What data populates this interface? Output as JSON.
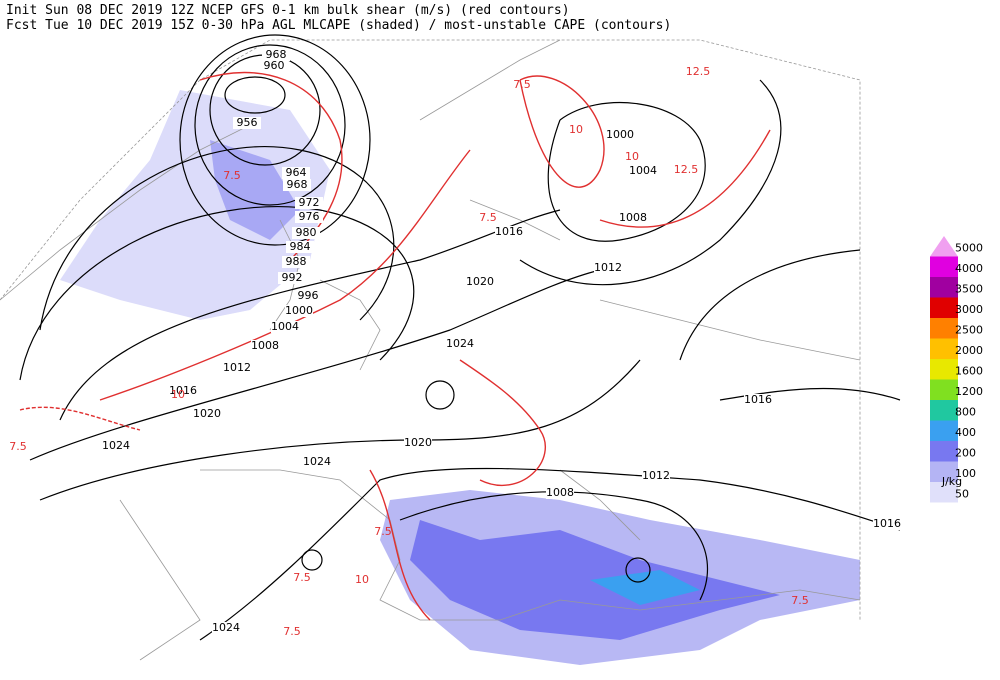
{
  "header": {
    "line1": "Init  Sun 08 DEC 2019 12Z  NCEP GFS 0-1 km bulk shear (m/s) (red contours)",
    "line2": "Fcst Tue 10 DEC 2019 15Z  0-30 hPa AGL MLCAPE (shaded) / most-unstable CAPE (contours)"
  },
  "legend": {
    "unit": "J/kg",
    "levels": [
      {
        "label": "5000",
        "color": "#f0a0f0"
      },
      {
        "label": "4000",
        "color": "#e000e0"
      },
      {
        "label": "3500",
        "color": "#a000a0"
      },
      {
        "label": "3000",
        "color": "#e00000"
      },
      {
        "label": "2500",
        "color": "#ff8000"
      },
      {
        "label": "2000",
        "color": "#ffc000"
      },
      {
        "label": "1600",
        "color": "#e8e800"
      },
      {
        "label": "1200",
        "color": "#80e020"
      },
      {
        "label": "800",
        "color": "#20c8a0"
      },
      {
        "label": "400",
        "color": "#3aa0f0"
      },
      {
        "label": "200",
        "color": "#7878f0"
      },
      {
        "label": "100",
        "color": "#b4b4f4"
      },
      {
        "label": "50",
        "color": "#e0e0fa"
      }
    ]
  },
  "isobar_labels": [
    "968",
    "960",
    "956",
    "964",
    "968",
    "972",
    "976",
    "980",
    "984",
    "988",
    "992",
    "996",
    "1000",
    "1004",
    "1008",
    "1012",
    "1016",
    "1020",
    "1024",
    "1024",
    "1020",
    "1024",
    "1020",
    "1016",
    "1012",
    "1008",
    "1004",
    "1000",
    "1012",
    "1008",
    "1016",
    "1016",
    "1024"
  ],
  "shear_labels": [
    "7.5",
    "7.5",
    "7.5",
    "7.5",
    "7.5",
    "7.5",
    "7.5",
    "12.5",
    "12.5",
    "7.5",
    "10",
    "10",
    "10",
    "10"
  ]
}
